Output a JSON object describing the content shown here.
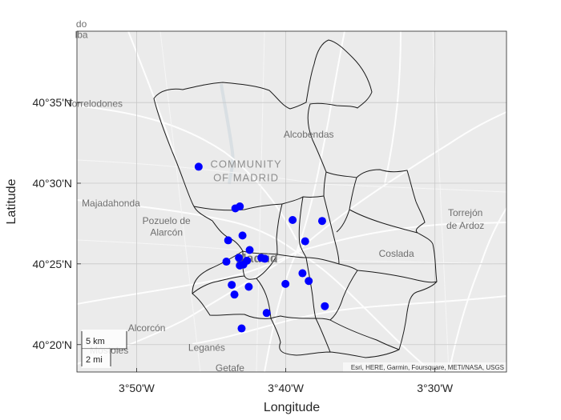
{
  "map": {
    "xlabel": "Longitude",
    "ylabel": "Latitude",
    "x_ticks": [
      {
        "value": -3.8333,
        "label": "3°50'W"
      },
      {
        "value": -3.6667,
        "label": "3°40'W"
      },
      {
        "value": -3.5,
        "label": "3°30'W"
      }
    ],
    "y_ticks": [
      {
        "value": 40.3333,
        "label": "40°20'N"
      },
      {
        "value": 40.4167,
        "label": "40°25'N"
      },
      {
        "value": 40.5,
        "label": "40°30'N"
      },
      {
        "value": 40.5833,
        "label": "40°35'N"
      }
    ],
    "xlim": [
      -3.9,
      -3.42
    ],
    "ylim": [
      40.305,
      40.657
    ],
    "attribution": "Esri, HERE, Garmin, Foursquare, METI/NASA, USGS",
    "scale_bar": {
      "km": "5 km",
      "mi": "2 mi"
    },
    "point_color": "#0000ff",
    "basemap_labels": [
      {
        "name": "Torrelodones",
        "lon": -3.88,
        "lat": 40.579
      },
      {
        "name": "Alcobendas",
        "lon": -3.641,
        "lat": 40.547
      },
      {
        "name": "Majadahonda",
        "lon": -3.862,
        "lat": 40.476
      },
      {
        "name": "Pozuelo de",
        "lon": -3.8,
        "lat": 40.458
      },
      {
        "name": "Alarcón",
        "lon": -3.8,
        "lat": 40.446
      },
      {
        "name": "Torrejón",
        "lon": -3.466,
        "lat": 40.466
      },
      {
        "name": "de Ardoz",
        "lon": -3.466,
        "lat": 40.453
      },
      {
        "name": "Coslada",
        "lon": -3.543,
        "lat": 40.424
      },
      {
        "name": "Alcorcón",
        "lon": -3.822,
        "lat": 40.347
      },
      {
        "name": "Leganés",
        "lon": -3.755,
        "lat": 40.327
      },
      {
        "name": "Móstoles",
        "lon": -3.864,
        "lat": 40.324
      },
      {
        "name": "Getafe",
        "lon": -3.729,
        "lat": 40.306
      },
      {
        "name": "lba",
        "lon": -3.895,
        "lat": 40.65
      },
      {
        "name": "do",
        "lon": -3.895,
        "lat": 40.661
      }
    ],
    "region_labels": [
      {
        "name": "COMMUNITY",
        "lon": -3.711,
        "lat": 40.516
      },
      {
        "name": "OF MADRID",
        "lon": -3.711,
        "lat": 40.502
      }
    ],
    "city_label": {
      "name": "Madrid",
      "lon": -3.699,
      "lat": 40.418
    },
    "points": [
      {
        "lon": -3.764,
        "lat": 40.517
      },
      {
        "lon": -3.723,
        "lat": 40.474
      },
      {
        "lon": -3.718,
        "lat": 40.476
      },
      {
        "lon": -3.659,
        "lat": 40.462
      },
      {
        "lon": -3.626,
        "lat": 40.461
      },
      {
        "lon": -3.731,
        "lat": 40.441
      },
      {
        "lon": -3.715,
        "lat": 40.446
      },
      {
        "lon": -3.645,
        "lat": 40.44
      },
      {
        "lon": -3.707,
        "lat": 40.431
      },
      {
        "lon": -3.719,
        "lat": 40.423
      },
      {
        "lon": -3.69,
        "lat": 40.422
      },
      {
        "lon": -3.694,
        "lat": 40.423
      },
      {
        "lon": -3.71,
        "lat": 40.42
      },
      {
        "lon": -3.733,
        "lat": 40.419
      },
      {
        "lon": -3.714,
        "lat": 40.416
      },
      {
        "lon": -3.718,
        "lat": 40.415
      },
      {
        "lon": -3.648,
        "lat": 40.407
      },
      {
        "lon": -3.641,
        "lat": 40.399
      },
      {
        "lon": -3.667,
        "lat": 40.396
      },
      {
        "lon": -3.708,
        "lat": 40.393
      },
      {
        "lon": -3.727,
        "lat": 40.395
      },
      {
        "lon": -3.724,
        "lat": 40.385
      },
      {
        "lon": -3.688,
        "lat": 40.366
      },
      {
        "lon": -3.623,
        "lat": 40.373
      },
      {
        "lon": -3.716,
        "lat": 40.35
      }
    ]
  }
}
